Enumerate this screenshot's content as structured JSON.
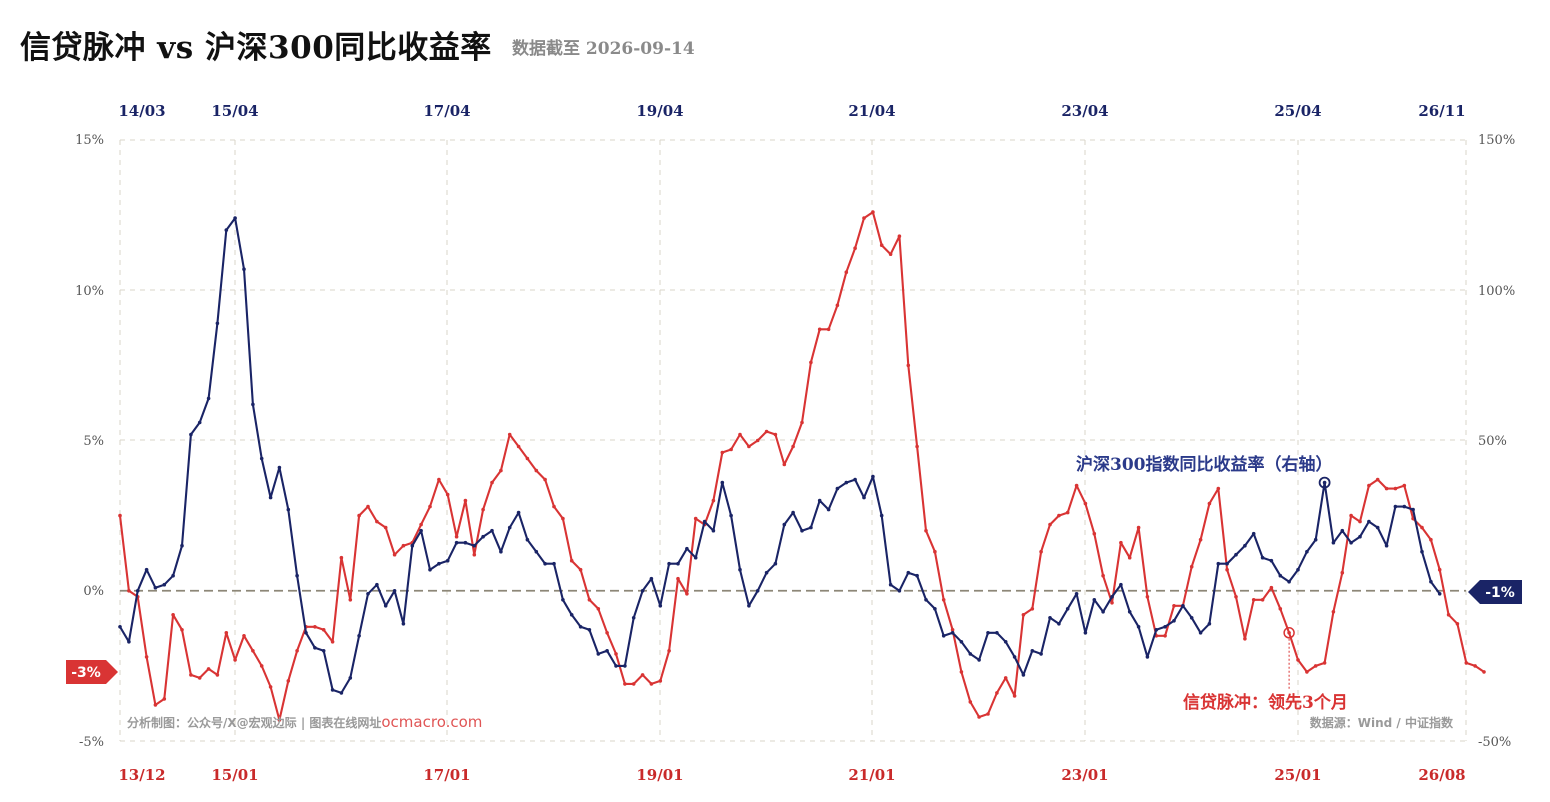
{
  "header": {
    "title": "信贷脉冲 vs 沪深300同比收益率",
    "subtitle": "数据截至 2026-09-14"
  },
  "chart_data": {
    "type": "line",
    "left_axis": {
      "ticks": [
        "15%",
        "10%",
        "5%",
        "0%",
        "-5%"
      ],
      "ylim": [
        -5,
        15
      ]
    },
    "right_axis": {
      "ticks": [
        "150%",
        "100%",
        "50%",
        "0%",
        "-50%"
      ],
      "ylim": [
        -50,
        150
      ]
    },
    "top_ticks": [
      "14/03",
      "15/04",
      "17/04",
      "19/04",
      "21/04",
      "23/04",
      "25/04",
      "26/11"
    ],
    "bottom_ticks": [
      "13/12",
      "15/01",
      "17/01",
      "19/01",
      "21/01",
      "23/01",
      "25/01",
      "26/08"
    ],
    "grid": "dashed",
    "series": [
      {
        "name": "信贷脉冲：领先3个月",
        "axis": "left",
        "color": "#d93434",
        "x_start": "2013-12",
        "values": [
          2.5,
          0.0,
          -0.2,
          -2.2,
          -3.8,
          -3.6,
          -0.8,
          -1.3,
          -2.8,
          -2.9,
          -2.6,
          -2.8,
          -1.4,
          -2.3,
          -1.5,
          -2.0,
          -2.5,
          -3.2,
          -4.3,
          -3.0,
          -2.0,
          -1.2,
          -1.2,
          -1.3,
          -1.7,
          1.1,
          -0.3,
          2.5,
          2.8,
          2.3,
          2.1,
          1.2,
          1.5,
          1.6,
          2.2,
          2.8,
          3.7,
          3.2,
          1.8,
          3.0,
          1.2,
          2.7,
          3.6,
          4.0,
          5.2,
          4.8,
          4.4,
          4.0,
          3.7,
          2.8,
          2.4,
          1.0,
          0.7,
          -0.3,
          -0.6,
          -1.4,
          -2.1,
          -3.1,
          -3.1,
          -2.8,
          -3.1,
          -3.0,
          -2.0,
          0.4,
          -0.1,
          2.4,
          2.2,
          3.0,
          4.6,
          4.7,
          5.2,
          4.8,
          5.0,
          5.3,
          5.2,
          4.2,
          4.8,
          5.6,
          7.6,
          8.7,
          8.7,
          9.5,
          10.6,
          11.4,
          12.4,
          12.6,
          11.5,
          11.2,
          11.8,
          7.5,
          4.8,
          2.0,
          1.3,
          -0.3,
          -1.3,
          -2.7,
          -3.7,
          -4.2,
          -4.1,
          -3.4,
          -2.9,
          -3.5,
          -0.8,
          -0.6,
          1.3,
          2.2,
          2.5,
          2.6,
          3.5,
          2.9,
          1.9,
          0.5,
          -0.4,
          1.6,
          1.1,
          2.1,
          -0.2,
          -1.5,
          -1.5,
          -0.5,
          -0.5,
          0.8,
          1.7,
          2.9,
          3.4,
          0.7,
          -0.2,
          -1.6,
          -0.3,
          -0.3,
          0.1,
          -0.6,
          -1.4,
          -2.3,
          -2.7,
          -2.5,
          -2.4,
          -0.7,
          0.6,
          2.5,
          2.3,
          3.5,
          3.7,
          3.4,
          3.4,
          3.5,
          2.4,
          2.1,
          1.7,
          0.7,
          -0.8,
          -1.1,
          -2.4,
          -2.5,
          -2.7
        ]
      },
      {
        "name": "沪深300指数同比收益率（右轴）",
        "axis": "right",
        "color": "#1a2466",
        "x_start": "2013-12",
        "values": [
          -12,
          -17,
          0,
          7,
          1,
          2,
          5,
          15,
          52,
          56,
          64,
          89,
          120,
          124,
          107,
          62,
          44,
          31,
          41,
          27,
          5,
          -14,
          -19,
          -20,
          -33,
          -34,
          -29,
          -15,
          -1,
          2,
          -5,
          0,
          -11,
          15,
          20,
          7,
          9,
          10,
          16,
          16,
          15,
          18,
          20,
          13,
          21,
          26,
          17,
          13,
          9,
          9,
          -3,
          -8,
          -12,
          -13,
          -21,
          -20,
          -25,
          -25,
          -9,
          0,
          4,
          -5,
          9,
          9,
          14,
          11,
          23,
          20,
          36,
          25,
          7,
          -5,
          0,
          6,
          9,
          22,
          26,
          20,
          21,
          30,
          27,
          34,
          36,
          37,
          31,
          38,
          25,
          2,
          0,
          6,
          5,
          -3,
          -6,
          -15,
          -14,
          -17,
          -21,
          -23,
          -14,
          -14,
          -17,
          -22,
          -28,
          -20,
          -21,
          -9,
          -11,
          -6,
          -1,
          -14,
          -3,
          -7,
          -2,
          2,
          -7,
          -12,
          -22,
          -13,
          -12,
          -10,
          -5,
          -9,
          -14,
          -11,
          9,
          9,
          12,
          15,
          19,
          11,
          10,
          5,
          3,
          7,
          13,
          17,
          36,
          16,
          20,
          16,
          18,
          23,
          21,
          15,
          28,
          28,
          27,
          13,
          3,
          -1
        ]
      }
    ],
    "annotations": {
      "blue_label": "沪深300指数同比收益率（右轴）",
      "red_label": "信贷脉冲：领先3个月",
      "right_tag": "-1%",
      "left_tag": "-3%"
    }
  },
  "credits": {
    "left_text": "分析制图：公众号/X@宏观边际 | 图表在线网址",
    "left_link": "ocmacro.com",
    "right_text": "数据源：Wind / 中证指数"
  },
  "colors": {
    "red": "#d93434",
    "navy": "#1a2466",
    "grid": "#d8d4c8",
    "zero": "#8d8778"
  }
}
